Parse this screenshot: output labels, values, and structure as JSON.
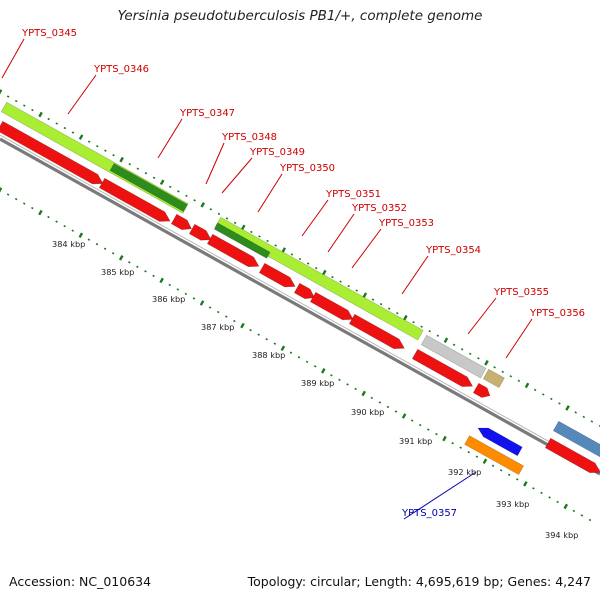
{
  "header": {
    "title": "Yersinia pseudotuberculosis PB1/+, complete genome"
  },
  "footer": {
    "accession": "Accession: NC_010634",
    "summary": "Topology: circular; Length: 4,695,619 bp; Genes: 4,247"
  },
  "colors": {
    "backbone": "#7a7a7a",
    "tick": "#1a7a1a",
    "gene_label": "#cc0000",
    "highlight_label": "#0000aa",
    "cds": "#ee1111",
    "light_green": "#aaee33",
    "dark_green": "#2e8b1e",
    "gray": "#c8c8c8",
    "tan": "#c8b070",
    "blue": "#1111ee",
    "orange": "#ff8c00",
    "steel_blue": "#5588bb"
  },
  "scale_labels": [
    "384 kbp",
    "385 kbp",
    "386 kbp",
    "387 kbp",
    "388 kbp",
    "389 kbp",
    "390 kbp",
    "391 kbp",
    "392 kbp",
    "393 kbp",
    "394 kbp"
  ],
  "genes": [
    {
      "name": "YPTS_0345"
    },
    {
      "name": "YPTS_0346"
    },
    {
      "name": "YPTS_0347"
    },
    {
      "name": "YPTS_0348"
    },
    {
      "name": "YPTS_0349"
    },
    {
      "name": "YPTS_0350"
    },
    {
      "name": "YPTS_0351"
    },
    {
      "name": "YPTS_0352"
    },
    {
      "name": "YPTS_0353"
    },
    {
      "name": "YPTS_0354"
    },
    {
      "name": "YPTS_0355"
    },
    {
      "name": "YPTS_0356"
    },
    {
      "name": "YPTS_0357",
      "highlight": true
    }
  ]
}
